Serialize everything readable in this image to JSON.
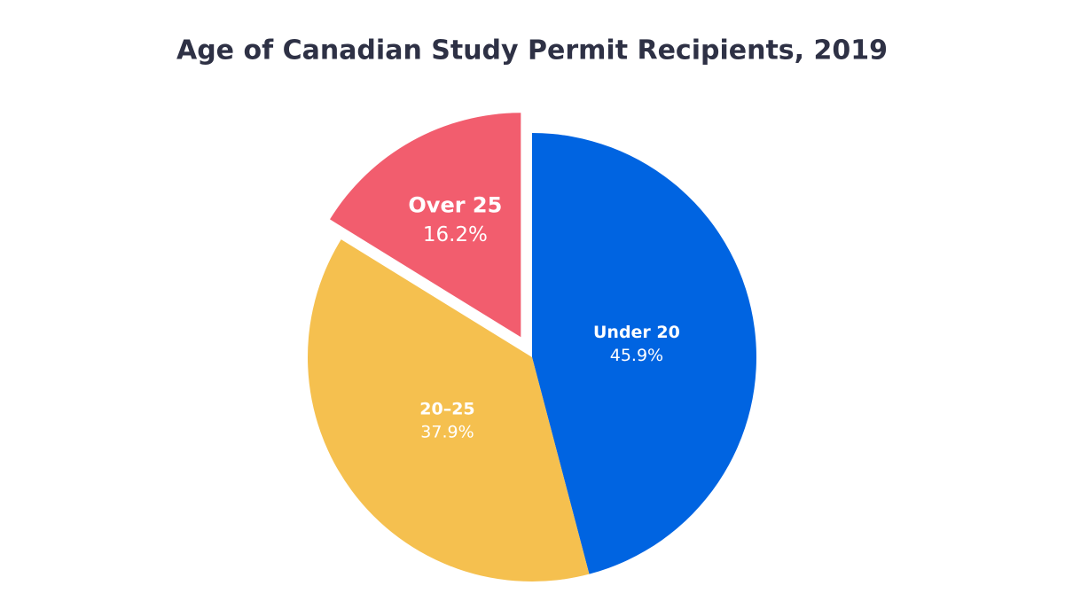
{
  "chart_data": {
    "type": "pie",
    "title": "Age of Canadian Study Permit Recipients, 2019",
    "categories": [
      "Under 20",
      "20–25",
      "Over 25"
    ],
    "values": [
      45.9,
      37.9,
      16.2
    ],
    "value_labels": [
      "45.9%",
      "37.9%",
      "16.2%"
    ],
    "colors": [
      "#0064e1",
      "#f5c04f",
      "#f25d6e"
    ],
    "exploded": [
      false,
      false,
      true
    ]
  }
}
